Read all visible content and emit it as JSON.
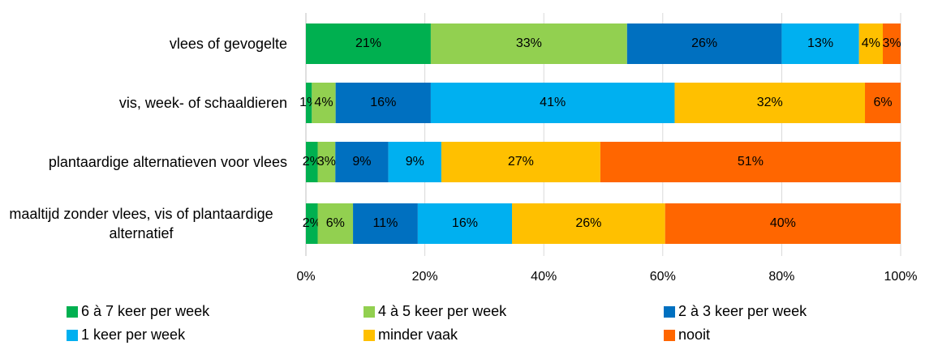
{
  "chart_data": {
    "type": "bar",
    "orientation": "horizontal",
    "stack": "percent",
    "categories": [
      "vlees of gevogelte",
      "vis, week- of schaaldieren",
      "plantaardige alternatieven voor vlees",
      "maaltijd zonder vlees, vis of plantaardige alternatief"
    ],
    "series": [
      {
        "name": "6 à 7 keer per week",
        "color": "#00b050",
        "values": [
          21,
          1,
          2,
          2
        ],
        "value_labels": [
          "21%",
          "1%",
          "2%",
          "2%"
        ]
      },
      {
        "name": "4 à 5 keer per week",
        "color": "#92d050",
        "values": [
          33,
          4,
          3,
          6
        ],
        "value_labels": [
          "33%",
          "4%",
          "3%",
          "6%"
        ]
      },
      {
        "name": "2 à 3 keer per week",
        "color": "#0070c0",
        "values": [
          26,
          16,
          9,
          11
        ],
        "value_labels": [
          "26%",
          "16%",
          "9%",
          "11%"
        ]
      },
      {
        "name": "1 keer per week",
        "color": "#00b0f0",
        "values": [
          13,
          41,
          9,
          16
        ],
        "value_labels": [
          "13%",
          "41%",
          "9%",
          "16%"
        ]
      },
      {
        "name": "minder vaak",
        "color": "#ffc000",
        "values": [
          4,
          32,
          27,
          26
        ],
        "value_labels": [
          "4%",
          "32%",
          "27%",
          "26%"
        ]
      },
      {
        "name": "nooit",
        "color": "#ff6600",
        "values": [
          3,
          6,
          51,
          40
        ],
        "value_labels": [
          "3%",
          "6%",
          "51%",
          "40%"
        ]
      }
    ],
    "xlim": [
      0,
      100
    ],
    "xticks": [
      {
        "value": 0,
        "label": "0%"
      },
      {
        "value": 20,
        "label": "20%"
      },
      {
        "value": 40,
        "label": "40%"
      },
      {
        "value": 60,
        "label": "60%"
      },
      {
        "value": 80,
        "label": "80%"
      },
      {
        "value": 100,
        "label": "100%"
      }
    ],
    "grid": true,
    "legend": "bottom"
  }
}
